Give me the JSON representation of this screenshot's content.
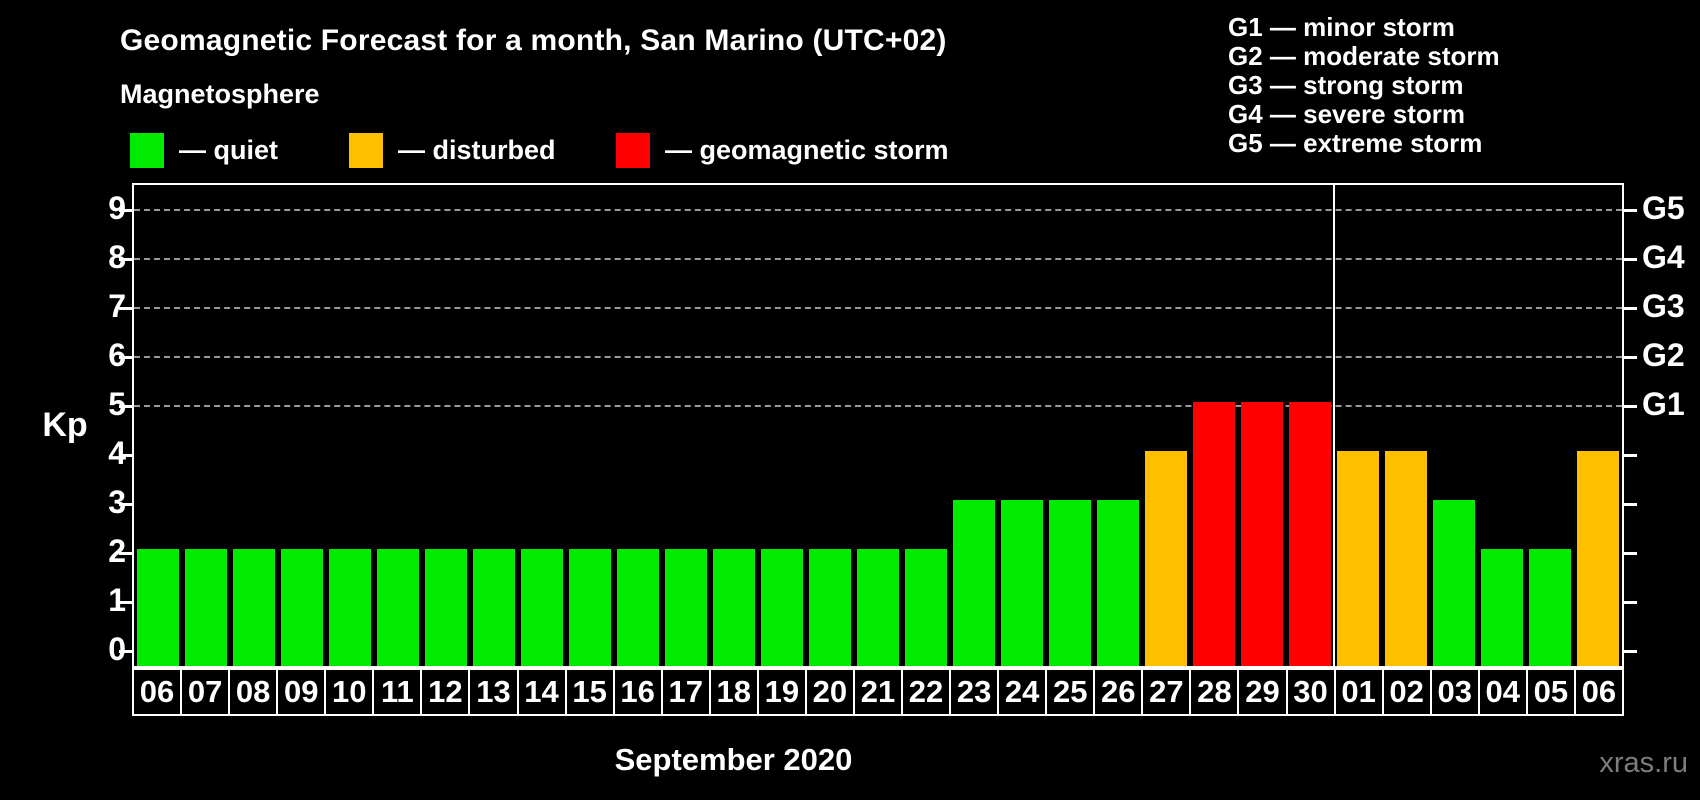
{
  "title": "Geomagnetic Forecast for a month, San Marino (UTC+02)",
  "subtitle": "Magnetosphere",
  "legend": {
    "items": [
      {
        "key": "quiet",
        "label": "— quiet",
        "color": "#00EB00"
      },
      {
        "key": "disturbed",
        "label": "— disturbed",
        "color": "#FFC000"
      },
      {
        "key": "storm",
        "label": "— geomagnetic storm",
        "color": "#FF0000"
      }
    ]
  },
  "g_legend": [
    "G1 — minor storm",
    "G2 — moderate storm",
    "G3 — strong storm",
    "G4 — severe storm",
    "G5 — extreme storm"
  ],
  "axis": {
    "y_label": "Kp",
    "y_ticks": [
      0,
      1,
      2,
      3,
      4,
      5,
      6,
      7,
      8,
      9
    ]
  },
  "x_axis": {
    "month_label": "September 2020"
  },
  "watermark": "xras.ru",
  "chart_data": {
    "type": "bar",
    "x": [
      "06",
      "07",
      "08",
      "09",
      "10",
      "11",
      "12",
      "13",
      "14",
      "15",
      "16",
      "17",
      "18",
      "19",
      "20",
      "21",
      "22",
      "23",
      "24",
      "25",
      "26",
      "27",
      "28",
      "29",
      "30",
      "01",
      "02",
      "03",
      "04",
      "05",
      "06"
    ],
    "values": [
      2,
      2,
      2,
      2,
      2,
      2,
      2,
      2,
      2,
      2,
      2,
      2,
      2,
      2,
      2,
      2,
      2,
      3,
      3,
      3,
      3,
      4,
      5,
      5,
      5,
      4,
      4,
      3,
      2,
      2,
      4
    ],
    "status": [
      "quiet",
      "quiet",
      "quiet",
      "quiet",
      "quiet",
      "quiet",
      "quiet",
      "quiet",
      "quiet",
      "quiet",
      "quiet",
      "quiet",
      "quiet",
      "quiet",
      "quiet",
      "quiet",
      "quiet",
      "quiet",
      "quiet",
      "quiet",
      "quiet",
      "disturbed",
      "storm",
      "storm",
      "storm",
      "disturbed",
      "disturbed",
      "quiet",
      "quiet",
      "quiet",
      "disturbed"
    ],
    "status_colors": {
      "quiet": "#00EB00",
      "disturbed": "#FFC000",
      "storm": "#FF0000"
    },
    "title": "Geomagnetic Forecast for a month, San Marino (UTC+02)",
    "xlabel": "September 2020",
    "ylabel": "Kp",
    "ylim": [
      0,
      9
    ],
    "y_ticks": [
      0,
      1,
      2,
      3,
      4,
      5,
      6,
      7,
      8,
      9
    ],
    "gridlines_at": [
      5,
      6,
      7,
      8,
      9
    ],
    "right_axis_labels": {
      "5": "G1",
      "6": "G2",
      "7": "G3",
      "8": "G4",
      "9": "G5"
    },
    "month_boundary_after_index": 24,
    "legend_position": "top-left",
    "grid": "dashed-horizontal-on-storm-levels-only"
  }
}
